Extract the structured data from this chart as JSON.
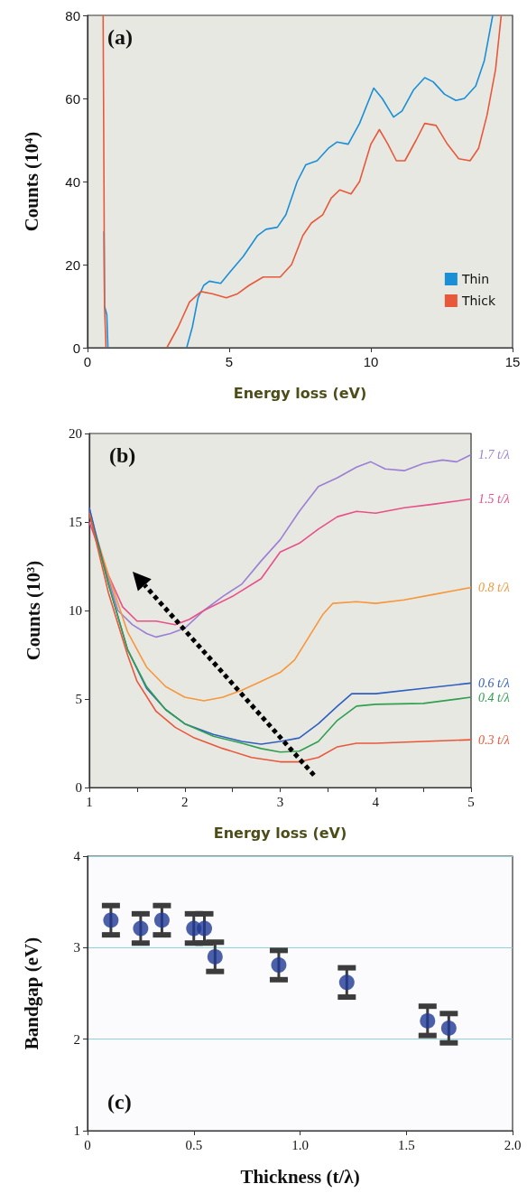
{
  "chart_data": [
    {
      "type": "line",
      "annotations": [
        "(a)"
      ],
      "xlabel": "Energy loss (eV)",
      "ylabel": "Counts (10⁴)",
      "xlim": [
        0,
        15
      ],
      "xticks": [
        0,
        5,
        10,
        15
      ],
      "ylim": [
        0,
        80
      ],
      "yticks": [
        0,
        20,
        40,
        60,
        80
      ],
      "grid": false,
      "legend": "bottom right",
      "marker": "none",
      "series": [
        {
          "name": "Thin",
          "color": "#1a8fd6",
          "x": [
            0.58,
            0.6,
            0.68,
            0.72,
            2,
            3.5,
            3.7,
            3.9,
            4.1,
            4.3,
            4.7,
            5.0,
            5.5,
            6.0,
            6.3,
            6.7,
            7.0,
            7.4,
            7.7,
            8.1,
            8.5,
            8.8,
            9.2,
            9.6,
            10.1,
            10.4,
            10.8,
            11.1,
            11.5,
            11.9,
            12.2,
            12.6,
            13.0,
            13.3,
            13.7,
            14.0,
            14.3
          ],
          "values": [
            28,
            10,
            8,
            0,
            null,
            0,
            5,
            12,
            15,
            16,
            15.5,
            18,
            22,
            27,
            28.5,
            29,
            32,
            40,
            44,
            45,
            48,
            49.5,
            49,
            54,
            62.5,
            60,
            55.5,
            57,
            62,
            65,
            64,
            61,
            59.5,
            60,
            63,
            69,
            80
          ]
        },
        {
          "name": "Thick",
          "color": "#e8583a",
          "x": [
            0.55,
            0.58,
            0.6,
            0.65,
            2,
            2.8,
            3.2,
            3.6,
            4.0,
            4.4,
            4.9,
            5.3,
            5.7,
            6.2,
            6.5,
            6.8,
            7.2,
            7.6,
            7.9,
            8.3,
            8.6,
            8.9,
            9.3,
            9.6,
            10.0,
            10.3,
            10.6,
            10.9,
            11.2,
            11.6,
            11.9,
            12.3,
            12.7,
            13.1,
            13.5,
            13.8,
            14.1,
            14.4,
            14.6
          ],
          "values": [
            80,
            40,
            10,
            0,
            null,
            0,
            5,
            11,
            13.5,
            13,
            12,
            13,
            15,
            17,
            17,
            17,
            20,
            27,
            30,
            32,
            36,
            38,
            37,
            40,
            49,
            52.5,
            49,
            45,
            45,
            50,
            54,
            53.5,
            49,
            45.5,
            45,
            48,
            56,
            67,
            80
          ]
        }
      ]
    },
    {
      "type": "line",
      "annotations": [
        "(b)"
      ],
      "xlabel": "Energy loss (eV)",
      "ylabel": "Counts (10³)",
      "xlim": [
        1,
        5
      ],
      "xticks": [
        1,
        {
          "value": 1.5,
          "label": null
        },
        2,
        {
          "value": 2.5,
          "label": null
        },
        3,
        {
          "value": 3.5,
          "label": null
        },
        4,
        {
          "value": 4.5,
          "label": null
        },
        5
      ],
      "ylim": [
        0,
        20
      ],
      "yticks": [
        0,
        5,
        10,
        15,
        20
      ],
      "grid": false,
      "legend": false,
      "marker": "none",
      "series": [
        {
          "name": "1.7 t/λ",
          "color": "#9b7fd4",
          "x": [
            1.0,
            1.1,
            1.2,
            1.3,
            1.45,
            1.6,
            1.7,
            1.85,
            2.0,
            2.2,
            2.4,
            2.6,
            2.8,
            3.0,
            3.2,
            3.4,
            3.6,
            3.8,
            3.95,
            4.1,
            4.3,
            4.5,
            4.7,
            4.85,
            5.0
          ],
          "values": [
            15.8,
            13.5,
            11.8,
            10,
            9.2,
            8.7,
            8.5,
            8.7,
            9,
            10,
            10.8,
            11.5,
            12.8,
            14,
            15.6,
            17,
            17.5,
            18.1,
            18.4,
            18,
            17.9,
            18.3,
            18.5,
            18.4,
            18.8
          ]
        },
        {
          "name": "1.5 t/λ",
          "color": "#e8508a",
          "x": [
            1.0,
            1.2,
            1.35,
            1.5,
            1.7,
            1.9,
            2.05,
            2.2,
            2.5,
            2.8,
            3.0,
            3.2,
            3.4,
            3.6,
            3.8,
            4.0,
            4.3,
            4.6,
            5.0
          ],
          "values": [
            15,
            12,
            10.2,
            9.4,
            9.4,
            9.2,
            9.5,
            10,
            10.8,
            11.8,
            13.3,
            13.8,
            14.6,
            15.3,
            15.6,
            15.5,
            15.8,
            16,
            16.3
          ]
        },
        {
          "name": "0.8 t/λ",
          "color": "#f7963a",
          "x": [
            1.0,
            1.2,
            1.4,
            1.6,
            1.8,
            2.0,
            2.2,
            2.4,
            2.6,
            2.8,
            3.0,
            3.15,
            3.3,
            3.45,
            3.55,
            3.8,
            4.0,
            4.3,
            4.6,
            5.0
          ],
          "values": [
            15.5,
            12,
            8.8,
            6.8,
            5.7,
            5.1,
            4.9,
            5.1,
            5.5,
            6,
            6.5,
            7.2,
            8.5,
            9.8,
            10.4,
            10.5,
            10.4,
            10.6,
            10.9,
            11.3
          ]
        },
        {
          "name": "0.6 t/λ",
          "color": "#2f5fc0",
          "x": [
            1.0,
            1.2,
            1.4,
            1.6,
            1.8,
            2.0,
            2.3,
            2.6,
            2.8,
            3.0,
            3.2,
            3.4,
            3.6,
            3.75,
            4.0,
            4.5,
            5.0
          ],
          "values": [
            15.8,
            11.5,
            7.8,
            5.6,
            4.4,
            3.6,
            3,
            2.6,
            2.45,
            2.6,
            2.8,
            3.6,
            4.6,
            5.3,
            5.3,
            5.6,
            5.9
          ]
        },
        {
          "name": "0.4 t/λ",
          "color": "#30a050",
          "x": [
            1.0,
            1.2,
            1.4,
            1.6,
            1.8,
            2.0,
            2.3,
            2.6,
            2.8,
            3.0,
            3.2,
            3.4,
            3.6,
            3.8,
            4.0,
            4.5,
            5.0
          ],
          "values": [
            15.5,
            11.5,
            7.8,
            5.7,
            4.4,
            3.6,
            2.9,
            2.5,
            2.2,
            2.0,
            2.05,
            2.6,
            3.8,
            4.6,
            4.7,
            4.75,
            5.1
          ]
        },
        {
          "name": "0.3 t/λ",
          "color": "#e8583a",
          "x": [
            1.0,
            1.2,
            1.4,
            1.5,
            1.7,
            1.9,
            2.1,
            2.4,
            2.7,
            3.0,
            3.2,
            3.4,
            3.6,
            3.8,
            4.0,
            4.5,
            5.0
          ],
          "values": [
            15.5,
            11,
            7.5,
            6,
            4.3,
            3.4,
            2.8,
            2.2,
            1.7,
            1.45,
            1.45,
            1.7,
            2.3,
            2.5,
            2.5,
            2.6,
            2.7
          ]
        }
      ]
    },
    {
      "type": "scatter",
      "annotations": [
        "(c)"
      ],
      "xlabel": "Thickness (t/λ)",
      "ylabel": "Bandgap (eV)",
      "xlim": [
        0,
        2
      ],
      "xticks": [
        0,
        0.5,
        {
          "value": 1,
          "label": "1.0"
        },
        {
          "value": 1.5,
          "label": "1.5"
        },
        {
          "value": 2,
          "label": "2.0"
        }
      ],
      "ylim": [
        1,
        4
      ],
      "yticks": [
        1,
        2,
        3,
        4
      ],
      "grid": "y",
      "legend": false,
      "marker": "circle",
      "series": [
        {
          "color": "#1f3a93",
          "x": [
            0.11,
            0.25,
            0.35,
            0.5,
            0.55,
            0.6,
            0.9,
            1.22,
            1.6,
            1.7
          ],
          "values": [
            3.3,
            3.21,
            3.3,
            3.21,
            3.21,
            2.9,
            2.81,
            2.62,
            2.2,
            2.12
          ],
          "errors": [
            0.16,
            0.16,
            0.16,
            0.16,
            0.16,
            0.16,
            0.16,
            0.16,
            0.16,
            0.16
          ]
        }
      ]
    }
  ]
}
